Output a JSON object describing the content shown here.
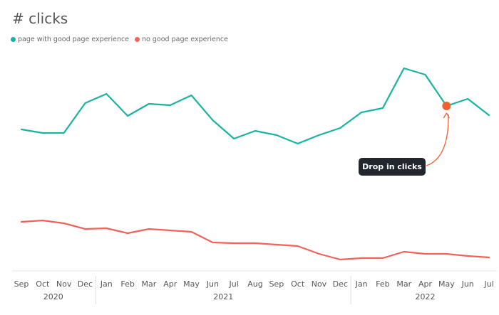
{
  "chart_data": {
    "type": "line",
    "title": "# clicks",
    "categories": [
      "Sep",
      "Oct",
      "Nov",
      "Dec",
      "Jan",
      "Feb",
      "Mar",
      "Apr",
      "May",
      "Jun",
      "Jul",
      "Aug",
      "Sep",
      "Oct",
      "Nov",
      "Dec",
      "Jan",
      "Feb",
      "Mar",
      "Apr",
      "May",
      "Jun",
      "Jul"
    ],
    "year_groups": [
      {
        "label": "2020",
        "from": 0,
        "to": 3
      },
      {
        "label": "2021",
        "from": 4,
        "to": 15
      },
      {
        "label": "2022",
        "from": 16,
        "to": 22
      }
    ],
    "series": [
      {
        "name": "page with good page experience",
        "color": "#1ab3a0",
        "values": [
          182,
          187,
          187,
          145,
          132,
          163,
          146,
          148,
          134,
          169,
          195,
          184,
          190,
          202,
          190,
          180,
          158,
          152,
          96,
          105,
          149,
          139,
          162
        ]
      },
      {
        "name": "no good page experience",
        "color": "#f0625a",
        "values": [
          312,
          310,
          314,
          322,
          321,
          328,
          322,
          324,
          326,
          341,
          342,
          342,
          344,
          346,
          357,
          365,
          363,
          363,
          354,
          357,
          357,
          360,
          362
        ]
      }
    ],
    "ylim": [
      0,
      400
    ],
    "y_inverted_scale": true,
    "annotation": {
      "label": "Drop in clicks",
      "category_index": 20,
      "series_index": 0,
      "color": "#f0612f"
    }
  },
  "legend_dot_colors": [
    "#1ab3a0",
    "#f0625a"
  ]
}
